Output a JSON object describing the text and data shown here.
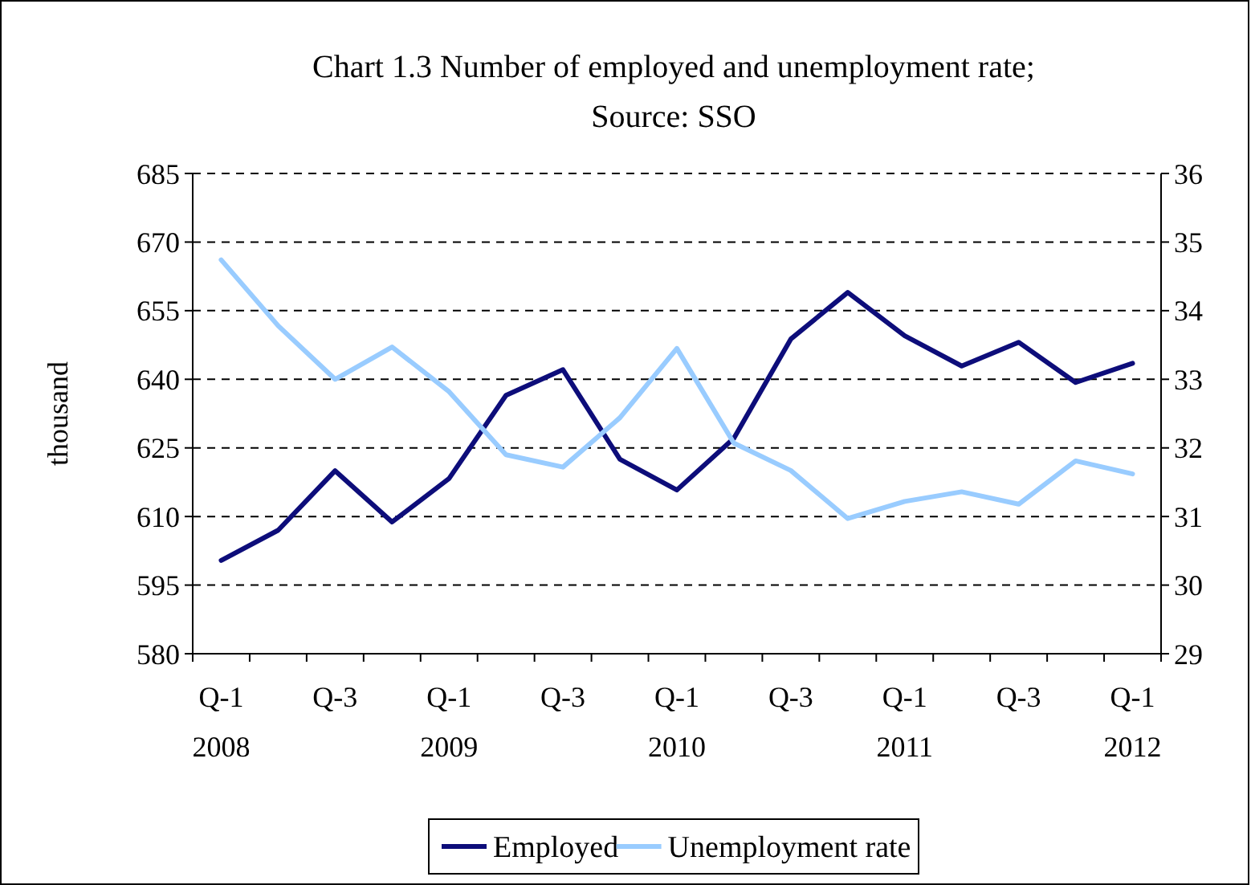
{
  "chart_data": {
    "type": "line",
    "title": "Chart 1.3 Number of employed and unemployment rate;",
    "annotations": [
      "Source: SSO"
    ],
    "ylabel": "thousand",
    "categories": [
      "Q-1\n2008",
      null,
      "Q-3",
      null,
      "Q-1\n2009",
      null,
      "Q-3",
      null,
      "Q-1\n2010",
      null,
      "Q-3",
      null,
      "Q-1\n2011",
      null,
      "Q-3",
      null,
      "Q-1\n2012"
    ],
    "series": [
      {
        "name": "Employed",
        "color": "#0d0d7a",
        "values": [
          600.4,
          607,
          620,
          608.8,
          618.3,
          636.5,
          642.1,
          622.5,
          615.8,
          627.1,
          648.8,
          659,
          649.5,
          642.9,
          648.1,
          639.3,
          643.5
        ]
      },
      {
        "name": "Unemployment rate",
        "color": "#99ccff",
        "axis": "y2",
        "values": [
          34.74,
          33.78,
          33.0,
          33.47,
          32.82,
          31.9,
          31.72,
          32.44,
          33.45,
          32.07,
          31.67,
          30.97,
          31.22,
          31.36,
          31.18,
          31.81,
          31.62
        ]
      }
    ],
    "ylim": [
      580,
      685
    ],
    "yticks": [
      580,
      595,
      610,
      625,
      640,
      655,
      670,
      685
    ],
    "y2lim": [
      29,
      36
    ],
    "y2ticks": [
      29,
      30,
      31,
      32,
      33,
      34,
      35,
      36
    ],
    "grid": "y",
    "legend": "bottom",
    "marker": "none",
    "line_style": "solid"
  }
}
